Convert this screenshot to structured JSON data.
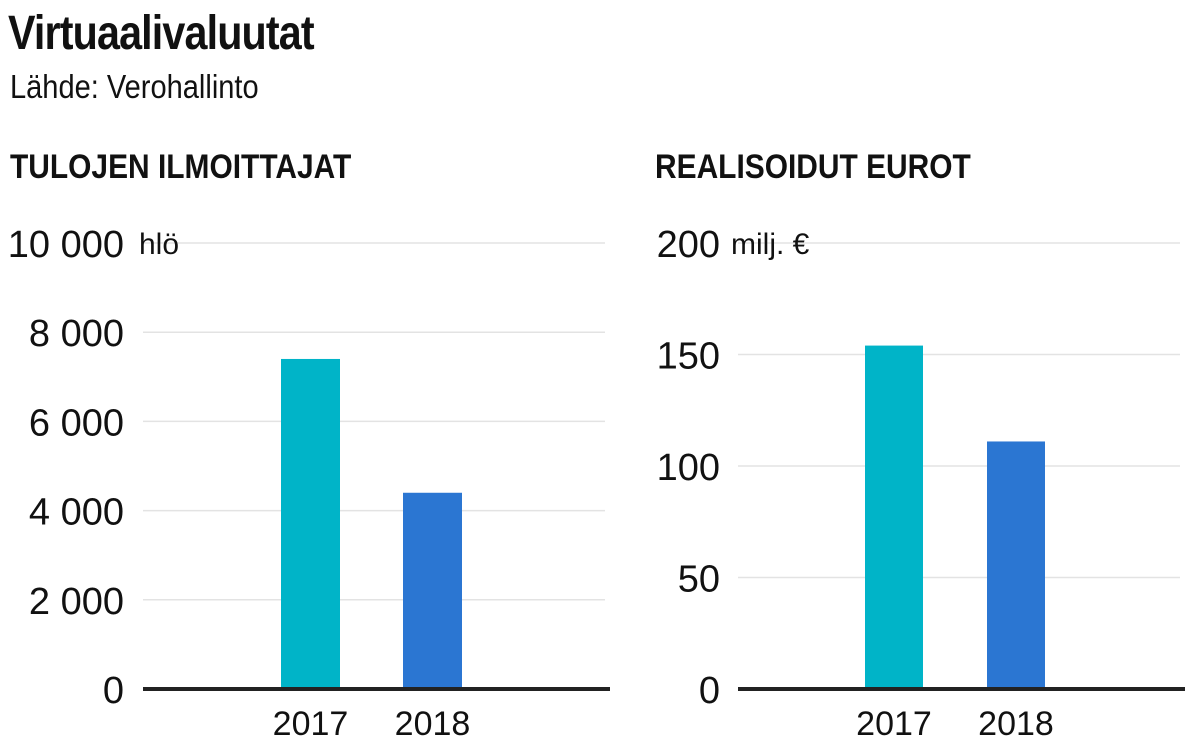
{
  "title": "Virtuaalivaluutat",
  "source": "Lähde: Verohallinto",
  "colors": {
    "2017": "#00b4c8",
    "2018": "#2b76d2",
    "axis": "#222222",
    "grid": "#e3e3e3"
  },
  "chart_data": [
    {
      "type": "bar",
      "title": "TULOJEN ILMOITTAJAT",
      "unit": "hlö",
      "categories": [
        "2017",
        "2018"
      ],
      "values": [
        7400,
        4400
      ],
      "ylim": [
        0,
        10000
      ],
      "yticks": [
        0,
        2000,
        4000,
        6000,
        8000,
        10000
      ],
      "ytick_labels": [
        "0",
        "2 000",
        "4 000",
        "6 000",
        "8 000",
        "10 000"
      ],
      "grid": true
    },
    {
      "type": "bar",
      "title": "REALISOIDUT EUROT",
      "unit": "milj. €",
      "categories": [
        "2017",
        "2018"
      ],
      "values": [
        154,
        111
      ],
      "ylim": [
        0,
        200
      ],
      "yticks": [
        0,
        50,
        100,
        150,
        200
      ],
      "ytick_labels": [
        "0",
        "50",
        "100",
        "150",
        "200"
      ],
      "grid": true
    }
  ]
}
